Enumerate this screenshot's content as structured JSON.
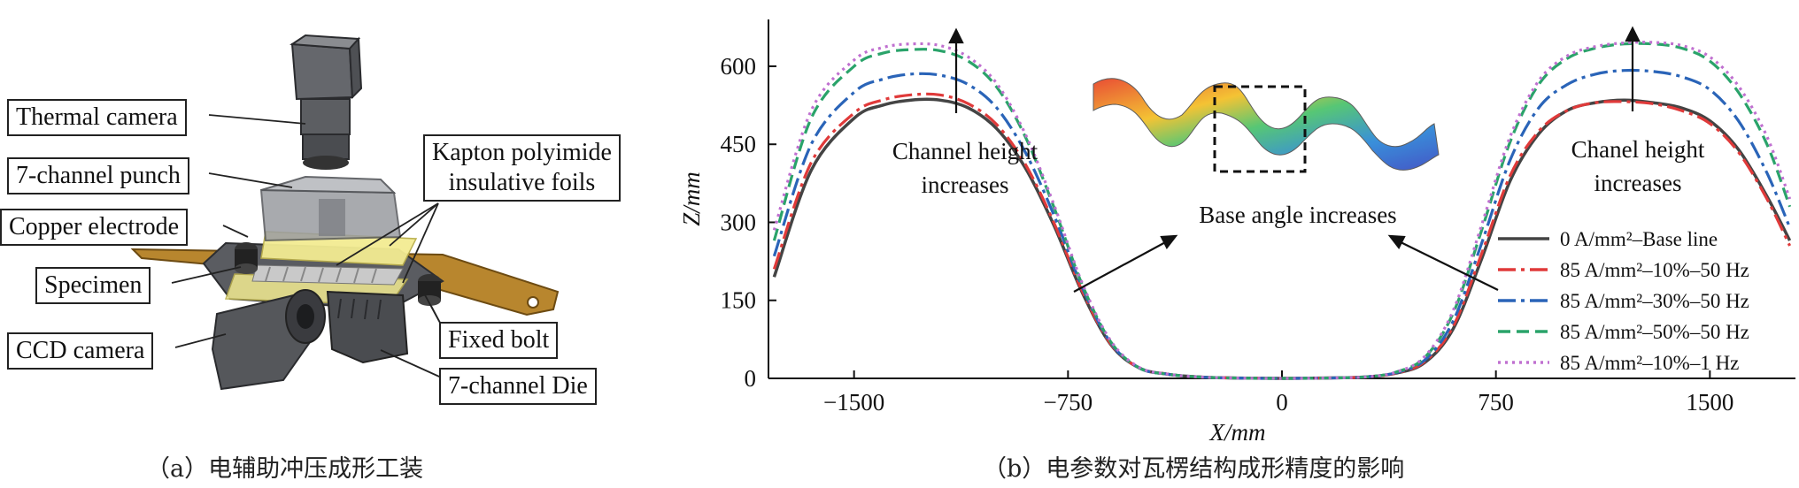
{
  "panel_a": {
    "labels": {
      "thermal_camera": "Thermal camera",
      "punch": "7-channel punch",
      "copper_electrode": "Copper electrode",
      "specimen": "Specimen",
      "ccd_camera": "CCD camera",
      "kapton_line1": "Kapton polyimide",
      "kapton_line2": "insulative foils",
      "fixed_bolt": "Fixed bolt",
      "die": "7-channel Die"
    },
    "caption": "（a）电辅助冲压成形工装"
  },
  "panel_b": {
    "caption": "（b）电参数对瓦楞结构成形精度的影响",
    "annotations": {
      "left_height_1": "Channel height",
      "left_height_2": "increases",
      "right_height_1": "Chanel height",
      "right_height_2": "increases",
      "base_angle": "Base angle increases"
    }
  },
  "chart_data": {
    "type": "line",
    "xlabel": "X/mm",
    "ylabel": "Z/mm",
    "xlim": [
      -1800,
      1800
    ],
    "ylim": [
      0,
      690
    ],
    "xticks": [
      -1500,
      -750,
      0,
      750,
      1500
    ],
    "xtick_labels": [
      "−1500",
      "−750",
      "0",
      "750",
      "1500"
    ],
    "yticks": [
      0,
      150,
      300,
      450,
      600
    ],
    "ytick_labels": [
      "0",
      "150",
      "300",
      "450",
      "600"
    ],
    "grid": false,
    "legend_position": "right",
    "series": [
      {
        "name": "0 A/mm²–Base line",
        "color": "#444444",
        "style": "solid",
        "x": [
          -1780,
          -1650,
          -1500,
          -1400,
          -1300,
          -1200,
          -1100,
          -1000,
          -900,
          -800,
          -700,
          -600,
          -500,
          -400,
          -300,
          -200,
          0,
          200,
          300,
          400,
          500,
          600,
          700,
          800,
          900,
          1000,
          1100,
          1200,
          1300,
          1400,
          1500,
          1600,
          1700,
          1780
        ],
        "y": [
          195,
          400,
          500,
          525,
          535,
          535,
          520,
          480,
          405,
          295,
          165,
          65,
          20,
          8,
          3,
          1,
          0,
          1,
          3,
          10,
          30,
          95,
          230,
          380,
          470,
          515,
          530,
          535,
          530,
          520,
          495,
          440,
          350,
          265
        ]
      },
      {
        "name": "85 A/mm²–10%–50 Hz",
        "color": "#e03a3a",
        "style": "dashdot",
        "x": [
          -1780,
          -1650,
          -1500,
          -1400,
          -1300,
          -1200,
          -1100,
          -1000,
          -900,
          -800,
          -700,
          -600,
          -500,
          -400,
          -300,
          -200,
          0,
          200,
          300,
          400,
          500,
          600,
          700,
          800,
          900,
          1000,
          1100,
          1200,
          1300,
          1400,
          1500,
          1600,
          1700,
          1780
        ],
        "y": [
          210,
          415,
          510,
          535,
          545,
          545,
          528,
          488,
          412,
          300,
          168,
          66,
          20,
          8,
          3,
          1,
          0,
          1,
          3,
          10,
          32,
          100,
          240,
          390,
          475,
          515,
          530,
          532,
          528,
          515,
          490,
          435,
          345,
          255
        ]
      },
      {
        "name": "85 A/mm²–30%–50 Hz",
        "color": "#2a64b8",
        "style": "dashdot",
        "x": [
          -1780,
          -1650,
          -1500,
          -1400,
          -1300,
          -1200,
          -1100,
          -1000,
          -900,
          -800,
          -700,
          -600,
          -500,
          -400,
          -300,
          -200,
          0,
          200,
          300,
          400,
          500,
          600,
          700,
          800,
          900,
          1000,
          1100,
          1200,
          1300,
          1400,
          1500,
          1600,
          1700,
          1780
        ],
        "y": [
          235,
          450,
          550,
          575,
          585,
          583,
          565,
          520,
          435,
          315,
          175,
          68,
          20,
          8,
          3,
          1,
          0,
          1,
          3,
          11,
          35,
          110,
          260,
          420,
          520,
          565,
          585,
          592,
          590,
          580,
          555,
          495,
          395,
          290
        ]
      },
      {
        "name": "85 A/mm²–50%–50 Hz",
        "color": "#2aa36a",
        "style": "dashed",
        "x": [
          -1780,
          -1650,
          -1500,
          -1400,
          -1300,
          -1200,
          -1100,
          -1000,
          -900,
          -800,
          -700,
          -600,
          -500,
          -400,
          -300,
          -200,
          0,
          200,
          300,
          400,
          500,
          600,
          700,
          800,
          900,
          1000,
          1100,
          1200,
          1300,
          1400,
          1500,
          1600,
          1700,
          1780
        ],
        "y": [
          265,
          500,
          600,
          625,
          632,
          630,
          610,
          560,
          465,
          330,
          180,
          70,
          20,
          8,
          3,
          1,
          0,
          1,
          3,
          12,
          40,
          125,
          285,
          455,
          565,
          615,
          635,
          643,
          643,
          635,
          610,
          550,
          450,
          330
        ]
      },
      {
        "name": "85 A/mm²–10%–1 Hz",
        "color": "#c070d0",
        "style": "dotted",
        "x": [
          -1780,
          -1650,
          -1500,
          -1400,
          -1300,
          -1200,
          -1100,
          -1000,
          -900,
          -800,
          -700,
          -600,
          -500,
          -400,
          -300,
          -200,
          0,
          200,
          300,
          400,
          500,
          600,
          700,
          800,
          900,
          1000,
          1100,
          1200,
          1300,
          1400,
          1500,
          1600,
          1700,
          1780
        ],
        "y": [
          285,
          515,
          612,
          636,
          643,
          640,
          618,
          567,
          470,
          335,
          183,
          72,
          21,
          8,
          3,
          1,
          0,
          1,
          3,
          12,
          42,
          130,
          295,
          465,
          572,
          620,
          638,
          645,
          646,
          640,
          618,
          562,
          465,
          345
        ]
      }
    ]
  }
}
